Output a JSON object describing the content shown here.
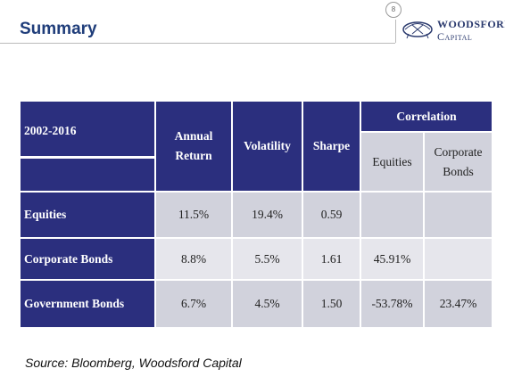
{
  "header": {
    "title": "Summary",
    "page_number": "8",
    "logo": {
      "line1": "WOODSFORD",
      "line2": "Capital"
    }
  },
  "table": {
    "period": "2002-2016",
    "columns": [
      "Annual Return",
      "Volatility",
      "Sharpe"
    ],
    "group": "Correlation",
    "subcolumns": [
      "Equities",
      "Corporate Bonds"
    ],
    "rows": [
      {
        "name": "Equities",
        "return": "11.5%",
        "volatility": "19.4%",
        "sharpe": "0.59",
        "correlation": []
      },
      {
        "name": "Corporate Bonds",
        "return": "8.8%",
        "volatility": "5.5%",
        "sharpe": "1.61",
        "correlation": [
          "45.91%"
        ]
      },
      {
        "name": "Government Bonds",
        "return": "6.7%",
        "volatility": "4.5%",
        "sharpe": "1.50",
        "correlation": [
          "-53.78%",
          "23.47%"
        ]
      }
    ]
  },
  "source": "Source: Bloomberg, Woodsford Capital"
}
